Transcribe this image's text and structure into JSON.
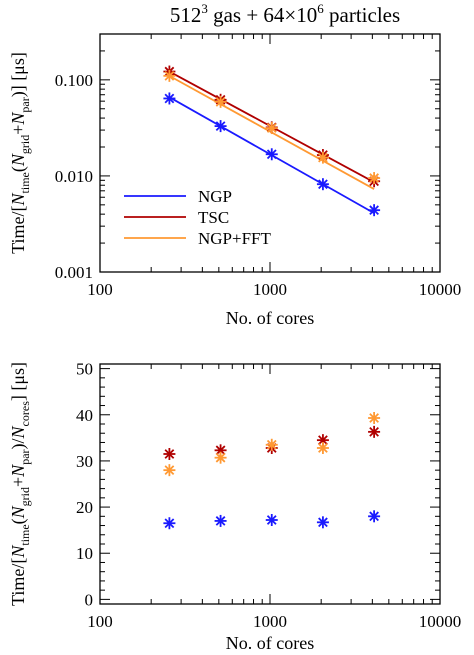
{
  "figure": {
    "title_main": "512",
    "title_sup": "3",
    "title_mid": " gas + 64×10",
    "title_sup2": "6",
    "title_end": " particles"
  },
  "chart_data": [
    {
      "type": "line",
      "xscale": "log",
      "yscale": "log",
      "xlim": [
        100,
        10000
      ],
      "ylim": [
        0.001,
        0.3
      ],
      "xlabel": "No. of cores",
      "ylabel_parts": [
        "Time/[",
        "N",
        "time",
        "(",
        "N",
        "grid",
        "+",
        "N",
        "par",
        ")] [μs]"
      ],
      "xticks": [
        100,
        1000,
        10000
      ],
      "xtick_labels": [
        "100",
        "1000",
        "10000"
      ],
      "yticks": [
        0.001,
        0.01,
        0.1
      ],
      "ytick_labels": [
        "0.001",
        "0.010",
        "0.100"
      ],
      "legend_position": "bottom-left",
      "x": [
        256,
        512,
        1024,
        2048,
        4096
      ],
      "series": [
        {
          "name": "NGP",
          "color": "#1a1aff",
          "values": [
            0.064,
            0.033,
            0.0168,
            0.0082,
            0.0044
          ],
          "fit": {
            "x": [
              256,
              4096
            ],
            "y": [
              0.066,
              0.0041
            ]
          }
        },
        {
          "name": "TSC",
          "color": "#b00000",
          "values": [
            0.122,
            0.062,
            0.032,
            0.0165,
            0.0088
          ],
          "fit": {
            "x": [
              256,
              4096
            ],
            "y": [
              0.122,
              0.0086
            ]
          }
        },
        {
          "name": "NGP+FFT",
          "color": "#ff9933",
          "values": [
            0.11,
            0.059,
            0.0315,
            0.0155,
            0.0095
          ],
          "fit": {
            "x": [
              256,
              4096
            ],
            "y": [
              0.11,
              0.0073
            ]
          }
        }
      ]
    },
    {
      "type": "scatter",
      "xscale": "log",
      "yscale": "linear",
      "xlim": [
        100,
        10000
      ],
      "ylim": [
        -1,
        51
      ],
      "xlabel": "No. of cores",
      "ylabel_parts": [
        "Time/[",
        "N",
        "time",
        "(",
        "N",
        "grid",
        "+",
        "N",
        "par",
        ")/",
        "N",
        "cores",
        "] [μs]"
      ],
      "xticks": [
        100,
        1000,
        10000
      ],
      "xtick_labels": [
        "100",
        "1000",
        "10000"
      ],
      "yticks": [
        0,
        10,
        20,
        30,
        40,
        50
      ],
      "ytick_labels": [
        "0",
        "10",
        "20",
        "30",
        "40",
        "50"
      ],
      "x": [
        256,
        512,
        1024,
        2048,
        4096
      ],
      "series": [
        {
          "name": "NGP",
          "color": "#1a1aff",
          "values": [
            16.5,
            17.0,
            17.2,
            16.7,
            18.0
          ]
        },
        {
          "name": "TSC",
          "color": "#b00000",
          "values": [
            31.5,
            32.3,
            32.8,
            34.5,
            36.3
          ]
        },
        {
          "name": "NGP+FFT",
          "color": "#ff9933",
          "values": [
            28.0,
            30.7,
            33.5,
            32.8,
            39.3
          ]
        }
      ]
    }
  ]
}
